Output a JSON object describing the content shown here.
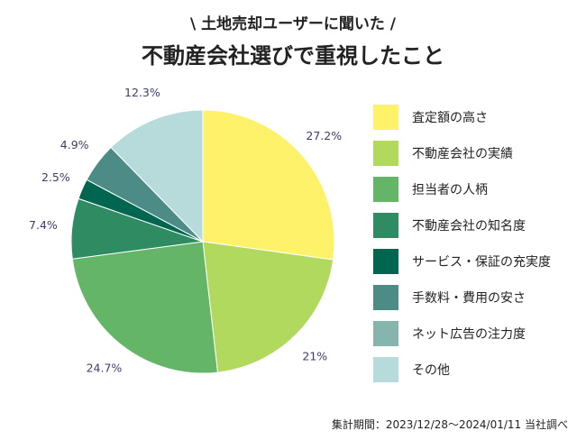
{
  "header": {
    "subtitle": "\\ 土地売却ユーザーに聞いた /",
    "title": "不動産会社選びで重視したこと"
  },
  "chart_data": {
    "type": "pie",
    "title": "不動産会社選びで重視したこと",
    "unit": "%",
    "slices": [
      {
        "label": "査定額の高さ",
        "value": 27.2,
        "display": "27.2%",
        "color": "#fdf26a"
      },
      {
        "label": "不動産会社の実績",
        "value": 21,
        "display": "21%",
        "color": "#b0d95e"
      },
      {
        "label": "担当者の人柄",
        "value": 24.7,
        "display": "24.7%",
        "color": "#64b567"
      },
      {
        "label": "不動産会社の知名度",
        "value": 7.4,
        "display": "7.4%",
        "color": "#2e8b62"
      },
      {
        "label": "サービス・保証の充実度",
        "value": 2.5,
        "display": "2.5%",
        "color": "#006650"
      },
      {
        "label": "手数料・費用の安さ",
        "value": 4.9,
        "display": "4.9%",
        "color": "#4d8c86"
      },
      {
        "label": "ネット広告の注力度",
        "value": 0,
        "display": "",
        "color": "#86b5ad"
      },
      {
        "label": "その他",
        "value": 12.3,
        "display": "12.3%",
        "color": "#b6dbda"
      }
    ],
    "legend_position": "right"
  },
  "footnote": "集計期間：2023/12/28〜2024/01/11 当社調べ"
}
